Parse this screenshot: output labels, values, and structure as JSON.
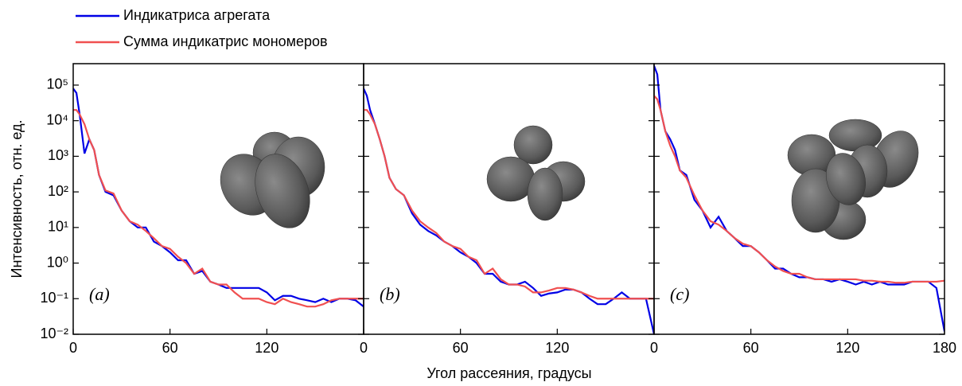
{
  "xlabel": "Угол рассеяния, градусы",
  "ylabel": "Интенсивность, отн. ед.",
  "chart_data": [
    {
      "type": "line",
      "annotation": "(a)",
      "log_y": true,
      "xlim": [
        0,
        180
      ],
      "xticks": [
        0,
        60,
        120
      ],
      "ylim": [
        0.01,
        400000
      ],
      "yticks": [
        {
          "value": 0.01,
          "label": "10⁻²"
        },
        {
          "value": 0.1,
          "label": "10⁻¹"
        },
        {
          "value": 1,
          "label": "10⁰"
        },
        {
          "value": 10,
          "label": "10¹"
        },
        {
          "value": 100,
          "label": "10²"
        },
        {
          "value": 1000,
          "label": "10³"
        },
        {
          "value": 10000,
          "label": "10⁴"
        },
        {
          "value": 100000,
          "label": "10⁵"
        }
      ],
      "x": [
        0,
        2,
        4,
        7,
        10,
        13,
        16,
        20,
        25,
        30,
        35,
        40,
        45,
        50,
        55,
        60,
        65,
        70,
        75,
        80,
        85,
        90,
        95,
        100,
        105,
        110,
        115,
        120,
        125,
        130,
        135,
        140,
        145,
        150,
        155,
        160,
        165,
        170,
        175,
        180
      ],
      "series": [
        {
          "name": "Индикатриса агрегата",
          "color": "#0000e6",
          "values": [
            80000,
            60000,
            15000,
            1200,
            3000,
            1500,
            300,
            100,
            80,
            30,
            15,
            10,
            10,
            4,
            3,
            2,
            1.2,
            1.2,
            0.5,
            0.6,
            0.3,
            0.25,
            0.2,
            0.2,
            0.2,
            0.2,
            0.2,
            0.15,
            0.09,
            0.12,
            0.12,
            0.1,
            0.09,
            0.08,
            0.1,
            0.08,
            0.1,
            0.1,
            0.09,
            0.06
          ]
        },
        {
          "name": "Сумма индикатрис мономеров",
          "color": "#f05050",
          "values": [
            20000,
            20000,
            15000,
            8000,
            3000,
            1500,
            300,
            110,
            90,
            30,
            15,
            12,
            8,
            5,
            3,
            2.5,
            1.5,
            1,
            0.5,
            0.7,
            0.3,
            0.25,
            0.25,
            0.15,
            0.1,
            0.1,
            0.1,
            0.08,
            0.07,
            0.1,
            0.08,
            0.07,
            0.06,
            0.06,
            0.07,
            0.09,
            0.1,
            0.1,
            0.1,
            0.1
          ]
        }
      ]
    },
    {
      "type": "line",
      "annotation": "(b)",
      "log_y": true,
      "xlim": [
        0,
        180
      ],
      "xticks": [
        0,
        60,
        120
      ],
      "ylim": [
        0.01,
        400000
      ],
      "x": [
        0,
        2,
        4,
        7,
        10,
        13,
        16,
        20,
        25,
        30,
        35,
        40,
        45,
        50,
        55,
        60,
        65,
        70,
        75,
        80,
        85,
        90,
        95,
        100,
        105,
        110,
        115,
        120,
        125,
        130,
        135,
        140,
        145,
        150,
        155,
        160,
        165,
        170,
        175,
        180
      ],
      "series": [
        {
          "name": "Индикатриса агрегата",
          "color": "#0000e6",
          "values": [
            80000,
            50000,
            20000,
            8000,
            3000,
            1000,
            250,
            120,
            80,
            25,
            12,
            8,
            6,
            4,
            3,
            2,
            1.5,
            1,
            0.5,
            0.5,
            0.3,
            0.25,
            0.25,
            0.3,
            0.2,
            0.12,
            0.14,
            0.15,
            0.18,
            0.18,
            0.15,
            0.1,
            0.07,
            0.07,
            0.1,
            0.15,
            0.1,
            0.1,
            0.1,
            0.01
          ]
        },
        {
          "name": "Сумма индикатрис мономеров",
          "color": "#f05050",
          "values": [
            20000,
            20000,
            15000,
            8000,
            3000,
            1000,
            250,
            120,
            80,
            30,
            15,
            10,
            7,
            4,
            3,
            2.5,
            1.5,
            1.2,
            0.5,
            0.7,
            0.35,
            0.25,
            0.25,
            0.22,
            0.15,
            0.15,
            0.17,
            0.2,
            0.2,
            0.18,
            0.15,
            0.12,
            0.1,
            0.1,
            0.1,
            0.1,
            0.1,
            0.1,
            0.1,
            0.1
          ]
        }
      ]
    },
    {
      "type": "line",
      "annotation": "(c)",
      "log_y": true,
      "xlim": [
        0,
        180
      ],
      "xticks": [
        0,
        60,
        120,
        180
      ],
      "ylim": [
        0.01,
        400000
      ],
      "x": [
        0,
        2,
        4,
        7,
        10,
        13,
        16,
        20,
        25,
        30,
        35,
        40,
        45,
        50,
        55,
        60,
        65,
        70,
        75,
        80,
        85,
        90,
        95,
        100,
        105,
        110,
        115,
        120,
        125,
        130,
        135,
        140,
        145,
        150,
        155,
        160,
        165,
        170,
        175,
        180
      ],
      "series": [
        {
          "name": "Индикатриса агрегата",
          "color": "#0000e6",
          "values": [
            350000,
            200000,
            20000,
            5000,
            3000,
            1500,
            400,
            300,
            60,
            30,
            10,
            20,
            8,
            5,
            3,
            3,
            2,
            1.2,
            0.7,
            0.7,
            0.5,
            0.4,
            0.4,
            0.35,
            0.35,
            0.3,
            0.35,
            0.3,
            0.25,
            0.3,
            0.25,
            0.3,
            0.25,
            0.25,
            0.25,
            0.3,
            0.3,
            0.3,
            0.2,
            0.012
          ]
        },
        {
          "name": "Сумма индикатрис мономеров",
          "color": "#f05050",
          "values": [
            50000,
            40000,
            20000,
            5000,
            2000,
            1000,
            400,
            250,
            80,
            30,
            15,
            12,
            8,
            5,
            3.5,
            3,
            2,
            1.2,
            0.8,
            0.6,
            0.5,
            0.5,
            0.4,
            0.35,
            0.35,
            0.35,
            0.35,
            0.35,
            0.35,
            0.32,
            0.32,
            0.3,
            0.3,
            0.28,
            0.28,
            0.3,
            0.3,
            0.3,
            0.3,
            0.32
          ]
        }
      ]
    }
  ]
}
